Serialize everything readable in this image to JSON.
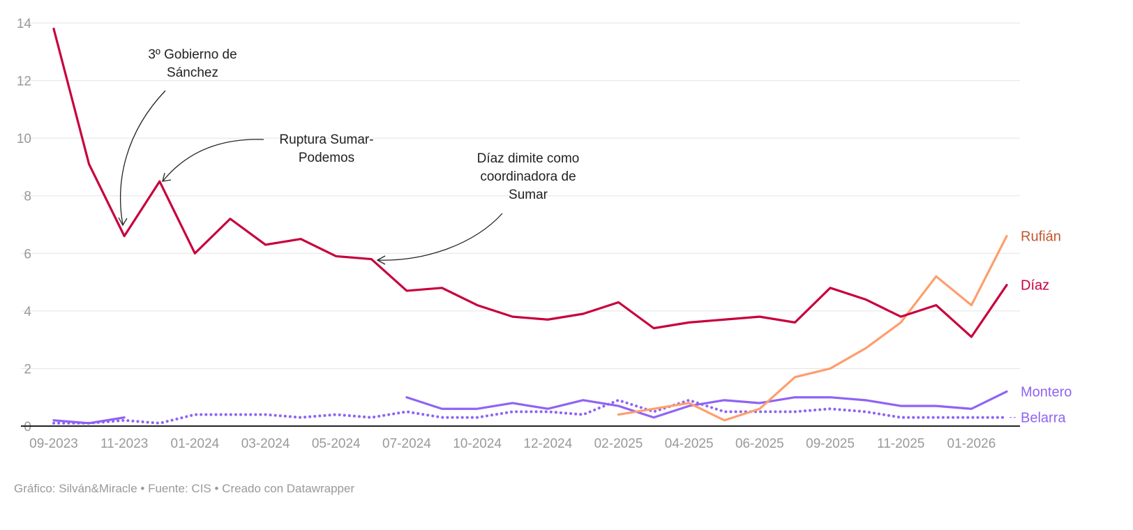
{
  "chart_data": {
    "type": "line",
    "title": "",
    "xlabel": "",
    "ylabel": "",
    "ylim": [
      0,
      14
    ],
    "yticks": [
      "0",
      "2",
      "4",
      "6",
      "8",
      "10",
      "12",
      "14"
    ],
    "grid": true,
    "x": [
      "09-2023",
      "10-2023",
      "11-2023",
      "12-2023",
      "01-2024",
      "02-2024",
      "03-2024",
      "04-2024",
      "05-2024",
      "06-2024",
      "07-2024",
      "09-2024",
      "10-2024",
      "11-2024",
      "12-2024",
      "01-2025",
      "02-2025",
      "03-2025",
      "04-2025",
      "05-2025",
      "06-2025",
      "07-2025",
      "09-2025",
      "10-2025",
      "11-2025",
      "12-2025",
      "01-2026",
      "02-2026"
    ],
    "xtick_labels": [
      "09-2023",
      "11-2023",
      "01-2024",
      "03-2024",
      "05-2024",
      "07-2024",
      "10-2024",
      "12-2024",
      "02-2025",
      "04-2025",
      "06-2025",
      "09-2025",
      "11-2025",
      "01-2026"
    ],
    "series": [
      {
        "name": "Díaz",
        "color": "#c8003c",
        "style": "solid",
        "values": [
          13.8,
          9.1,
          6.6,
          8.5,
          6.0,
          7.2,
          6.3,
          6.5,
          5.9,
          5.8,
          4.7,
          4.8,
          4.2,
          3.8,
          3.7,
          3.9,
          4.3,
          3.4,
          3.6,
          3.7,
          3.8,
          3.6,
          4.8,
          4.4,
          3.8,
          4.2,
          3.1,
          4.9
        ]
      },
      {
        "name": "Rufián",
        "color": "#ff9d6e",
        "label_color": "#c0562e",
        "style": "solid",
        "values": [
          null,
          null,
          null,
          null,
          null,
          null,
          null,
          null,
          null,
          null,
          null,
          null,
          null,
          null,
          null,
          null,
          0.4,
          0.6,
          0.8,
          0.2,
          0.6,
          1.7,
          2.0,
          2.7,
          3.6,
          5.2,
          4.2,
          6.6
        ]
      },
      {
        "name": "Montero",
        "color": "#8f63f5",
        "style": "solid",
        "values": [
          0.2,
          0.1,
          0.3,
          null,
          null,
          null,
          null,
          null,
          null,
          null,
          1.0,
          0.6,
          0.6,
          0.8,
          0.6,
          0.9,
          0.7,
          0.3,
          0.7,
          0.9,
          0.8,
          1.0,
          1.0,
          0.9,
          0.7,
          0.7,
          0.6,
          1.2
        ]
      },
      {
        "name": "Belarra",
        "color": "#8f63f5",
        "style": "dotted",
        "values": [
          0.1,
          0.1,
          0.2,
          0.1,
          0.4,
          0.4,
          0.4,
          0.3,
          0.4,
          0.3,
          0.5,
          0.3,
          0.3,
          0.5,
          0.5,
          0.4,
          0.9,
          0.5,
          0.9,
          0.5,
          0.5,
          0.5,
          0.6,
          0.5,
          0.3,
          0.3,
          0.3,
          0.3
        ]
      }
    ],
    "annotations": [
      {
        "lines": [
          "3º Gobierno de",
          "Sánchez"
        ],
        "target": "11-2023"
      },
      {
        "lines": [
          "Ruptura Sumar-",
          "Podemos"
        ],
        "target": "12-2023"
      },
      {
        "lines": [
          "Díaz dimite como",
          "coordinadora de",
          "Sumar"
        ],
        "target": "06-2024"
      }
    ]
  },
  "footer": "Gráfico: Silván&Miracle • Fuente: CIS • Creado con Datawrapper"
}
